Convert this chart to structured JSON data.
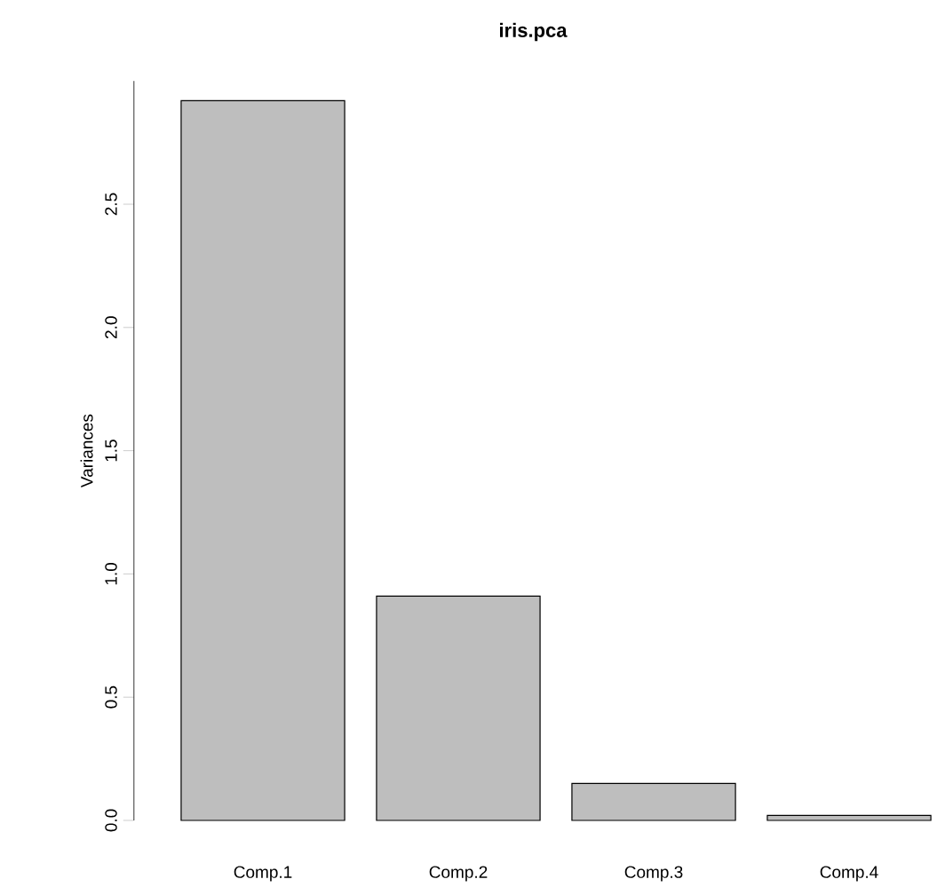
{
  "chart_data": {
    "type": "bar",
    "title": "iris.pca",
    "ylabel": "Variances",
    "categories": [
      "Comp.1",
      "Comp.2",
      "Comp.3",
      "Comp.4"
    ],
    "values": [
      2.92,
      0.91,
      0.15,
      0.02
    ],
    "color": "#bebebe",
    "ylim": [
      0,
      3.0
    ],
    "yticks": [
      {
        "value": 0,
        "label": "0.0"
      },
      0.5,
      {
        "value": 1,
        "label": "1.0"
      },
      1.5,
      {
        "value": 2,
        "label": "2.0"
      },
      2.5
    ],
    "grid": false
  }
}
